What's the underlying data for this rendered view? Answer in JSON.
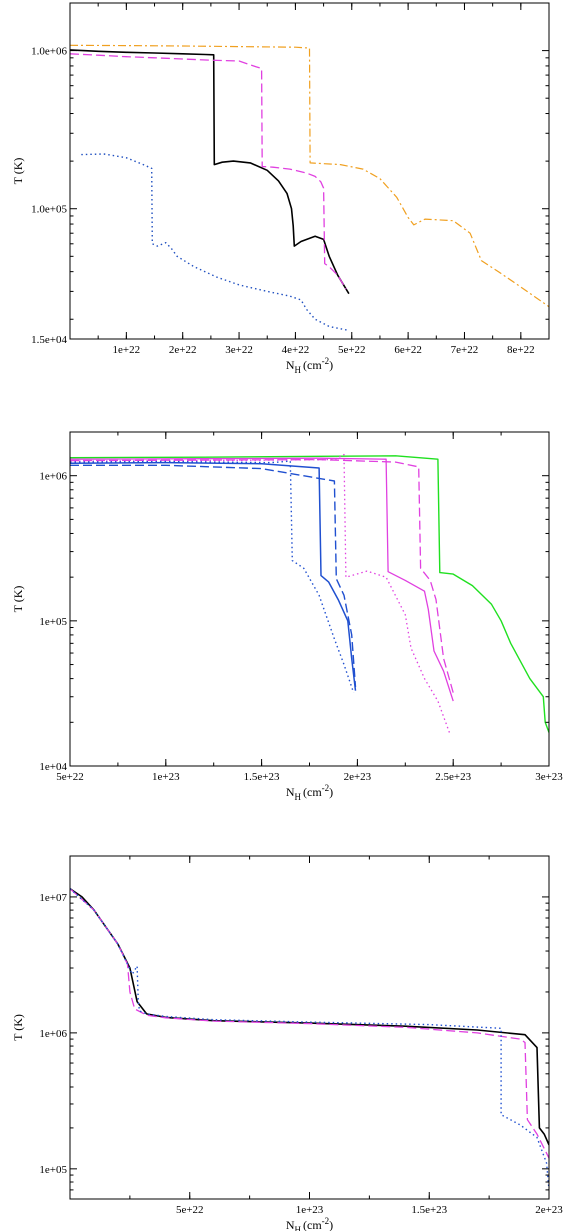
{
  "chart_data": [
    {
      "type": "line",
      "ylog": true,
      "xlabel_main": "N",
      "xlabel_sub": "H",
      "xlabel_unit": "(cm",
      "xlabel_exp": "-2",
      "xlabel_close": ")",
      "ylabel": "T (K)",
      "xlim": [
        0,
        8.5e+22
      ],
      "ylim": [
        15000,
        2000000
      ],
      "xticks": [
        {
          "v": 1e+22,
          "label": "1e+22"
        },
        {
          "v": 2e+22,
          "label": "2e+22"
        },
        {
          "v": 3e+22,
          "label": "3e+22"
        },
        {
          "v": 4e+22,
          "label": "4e+22"
        },
        {
          "v": 5e+22,
          "label": "5e+22"
        },
        {
          "v": 6e+22,
          "label": "6e+22"
        },
        {
          "v": 7e+22,
          "label": "7e+22"
        },
        {
          "v": 8e+22,
          "label": "8e+22"
        }
      ],
      "yticks": [
        {
          "v": 1000000,
          "label": "1.0e+06"
        },
        {
          "v": 100000,
          "label": "1.0e+05"
        },
        {
          "v": 15000,
          "label": "1.5e+04"
        }
      ],
      "series": [
        {
          "color": "#000000",
          "dash": "",
          "width": 1.6,
          "x": [
            0,
            5e+21,
            1e+22,
            1.5e+22,
            2e+22,
            2.4e+22,
            2.55e+22,
            2.56e+22,
            2.7e+22,
            2.9e+22,
            3.2e+22,
            3.5e+22,
            3.7e+22,
            3.85e+22,
            3.93e+22,
            3.96e+22,
            3.98e+22,
            4.1e+22,
            4.35e+22,
            4.5e+22,
            4.6e+22,
            4.75e+22,
            4.95e+22
          ],
          "y": [
            1010000,
            990000,
            975000,
            965000,
            955000,
            945000,
            940000,
            190000,
            197000,
            200000,
            195000,
            175000,
            150000,
            125000,
            100000,
            78000,
            58000,
            62000,
            67000,
            64000,
            50000,
            38000,
            29000
          ]
        },
        {
          "color": "#e040e0",
          "dash": "9,4",
          "width": 1.3,
          "x": [
            0,
            5e+21,
            1e+22,
            1.5e+22,
            2e+22,
            2.5e+22,
            3e+22,
            3.3e+22,
            3.4e+22,
            3.41e+22,
            3.6e+22,
            3.9e+22,
            4.2e+22,
            4.35e+22,
            4.45e+22,
            4.5e+22,
            4.52e+22,
            4.6e+22,
            4.75e+22,
            4.9e+22
          ],
          "y": [
            955000,
            935000,
            915000,
            900000,
            885000,
            870000,
            860000,
            790000,
            770000,
            185000,
            183000,
            178000,
            168000,
            160000,
            148000,
            135000,
            45000,
            43000,
            38000,
            31000
          ]
        },
        {
          "color": "#f0a020",
          "dash": "8,3,2,3",
          "width": 1.2,
          "x": [
            0,
            1e+22,
            2e+22,
            3e+22,
            4e+22,
            4.2e+22,
            4.25e+22,
            4.26e+22,
            4.8e+22,
            5.2e+22,
            5.5e+22,
            5.8e+22,
            6e+22,
            6.1e+22,
            6.3e+22,
            6.8e+22,
            7.1e+22,
            7.3e+22,
            7.6e+22,
            8e+22,
            8.5e+22
          ],
          "y": [
            1080000,
            1075000,
            1070000,
            1060000,
            1050000,
            1040000,
            1035000,
            195000,
            190000,
            178000,
            155000,
            118000,
            88000,
            79000,
            86000,
            84000,
            70000,
            47000,
            40000,
            32000,
            24000
          ]
        },
        {
          "color": "#2050c0",
          "dash": "1.5,3",
          "width": 1.4,
          "x": [
            2e+21,
            6e+21,
            1e+22,
            1.3e+22,
            1.45e+22,
            1.46e+22,
            1.55e+22,
            1.7e+22,
            1.8e+22,
            1.9e+22,
            2.2e+22,
            2.6e+22,
            3e+22,
            3.5e+22,
            3.9e+22,
            4.1e+22,
            4.2e+22,
            4.35e+22,
            4.6e+22,
            4.95e+22
          ],
          "y": [
            220000,
            222000,
            210000,
            190000,
            180000,
            60000,
            58000,
            61000,
            56000,
            50000,
            43000,
            37000,
            33000,
            30000,
            28000,
            26500,
            23000,
            20000,
            18000,
            17000
          ]
        }
      ]
    },
    {
      "type": "line",
      "ylog": true,
      "xlabel_main": "N",
      "xlabel_sub": "H",
      "xlabel_unit": "(cm",
      "xlabel_exp": "-2",
      "xlabel_close": ")",
      "ylabel": "T (K)",
      "xlim": [
        5e+22,
        3e+23
      ],
      "ylim": [
        10000,
        2000000
      ],
      "xticks": [
        {
          "v": 5e+22,
          "label": "5e+22"
        },
        {
          "v": 1e+23,
          "label": "1e+23"
        },
        {
          "v": 1.5e+23,
          "label": "1.5e+23"
        },
        {
          "v": 2e+23,
          "label": "2e+23"
        },
        {
          "v": 2.5e+23,
          "label": "2.5e+23"
        },
        {
          "v": 3e+23,
          "label": "3e+23"
        }
      ],
      "yticks": [
        {
          "v": 1000000,
          "label": "1e+06"
        },
        {
          "v": 100000,
          "label": "1e+05"
        },
        {
          "v": 10000,
          "label": "1e+04"
        }
      ],
      "series": [
        {
          "color": "#20e020",
          "dash": "",
          "width": 1.4,
          "x": [
            5e+22,
            1.2e+23,
            1.8e+23,
            2.2e+23,
            2.42e+23,
            2.43e+23,
            2.5e+23,
            2.6e+23,
            2.7e+23,
            2.75e+23,
            2.8e+23,
            2.9e+23,
            2.97e+23,
            2.98e+23,
            3e+23
          ],
          "y": [
            1330000,
            1340000,
            1360000,
            1370000,
            1300000,
            215000,
            210000,
            175000,
            130000,
            100000,
            70000,
            40000,
            30000,
            20000,
            17000
          ]
        },
        {
          "color": "#e040e0",
          "dash": "",
          "width": 1.3,
          "x": [
            5e+22,
            1.2e+23,
            1.8e+23,
            2.15e+23,
            2.16e+23,
            2.25e+23,
            2.35e+23,
            2.37e+23,
            2.4e+23,
            2.45e+23,
            2.5e+23
          ],
          "y": [
            1300000,
            1310000,
            1320000,
            1300000,
            218000,
            190000,
            160000,
            120000,
            62000,
            45000,
            28000
          ]
        },
        {
          "color": "#e040e0",
          "dash": "9,4",
          "width": 1.3,
          "x": [
            5e+22,
            1.2e+23,
            1.8e+23,
            2.2e+23,
            2.32e+23,
            2.33e+23,
            2.38e+23,
            2.41e+23,
            2.45e+23,
            2.5e+23
          ],
          "y": [
            1270000,
            1280000,
            1290000,
            1240000,
            1150000,
            230000,
            190000,
            140000,
            55000,
            32000
          ]
        },
        {
          "color": "#e040e0",
          "dash": "1.5,3",
          "width": 1.3,
          "x": [
            5e+22,
            1.2e+23,
            1.88e+23,
            1.93e+23,
            1.94e+23,
            2.05e+23,
            2.15e+23,
            2.25e+23,
            2.28e+23,
            2.35e+23,
            2.42e+23,
            2.48e+23
          ],
          "y": [
            1260000,
            1270000,
            1290000,
            1400000,
            200000,
            220000,
            200000,
            110000,
            65000,
            40000,
            28000,
            17000
          ]
        },
        {
          "color": "#2050d0",
          "dash": "",
          "width": 1.5,
          "x": [
            5e+22,
            1e+23,
            1.5e+23,
            1.8e+23,
            1.81e+23,
            1.85e+23,
            1.9e+23,
            1.95e+23,
            1.97e+23,
            1.99e+23
          ],
          "y": [
            1220000,
            1230000,
            1210000,
            1130000,
            205000,
            185000,
            140000,
            100000,
            55000,
            33000
          ]
        },
        {
          "color": "#2050d0",
          "dash": "9,4",
          "width": 1.4,
          "x": [
            5e+22,
            1e+23,
            1.5e+23,
            1.88e+23,
            1.89e+23,
            1.93e+23,
            1.97e+23,
            1.99e+23
          ],
          "y": [
            1180000,
            1180000,
            1120000,
            920000,
            195000,
            150000,
            80000,
            35000
          ]
        },
        {
          "color": "#2050d0",
          "dash": "1.5,3",
          "width": 1.4,
          "x": [
            5e+22,
            1e+23,
            1.55e+23,
            1.65e+23,
            1.66e+23,
            1.72e+23,
            1.8e+23,
            1.88e+23,
            1.93e+23,
            1.98e+23
          ],
          "y": [
            1240000,
            1250000,
            1230000,
            1260000,
            260000,
            230000,
            150000,
            75000,
            50000,
            32000
          ]
        }
      ]
    },
    {
      "type": "line",
      "ylog": true,
      "xlabel_main": "N",
      "xlabel_sub": "H",
      "xlabel_unit": "(cm",
      "xlabel_exp": "-2",
      "xlabel_close": ")",
      "ylabel": "T (K)",
      "xlim": [
        0,
        2e+23
      ],
      "ylim": [
        60000,
        20000000
      ],
      "xticks": [
        {
          "v": 5e+22,
          "label": "5e+22"
        },
        {
          "v": 1e+23,
          "label": "1e+23"
        },
        {
          "v": 1.5e+23,
          "label": "1.5e+23"
        },
        {
          "v": 2e+23,
          "label": "2e+23"
        }
      ],
      "yticks": [
        {
          "v": 10000000,
          "label": "1e+07"
        },
        {
          "v": 1000000,
          "label": "1e+06"
        },
        {
          "v": 100000,
          "label": "1e+05"
        }
      ],
      "series": [
        {
          "color": "#000000",
          "dash": "",
          "width": 1.6,
          "x": [
            0,
            5e+21,
            1e+22,
            1.5e+22,
            2e+22,
            2.5e+22,
            2.8e+22,
            3.2e+22,
            4e+22,
            6e+22,
            1e+23,
            1.4e+23,
            1.7e+23,
            1.9e+23,
            1.95e+23,
            1.96e+23,
            1.98e+23,
            2e+23
          ],
          "y": [
            11500000,
            10000000,
            8000000,
            6000000,
            4500000,
            3000000,
            1700000,
            1380000,
            1300000,
            1230000,
            1180000,
            1120000,
            1050000,
            970000,
            780000,
            200000,
            180000,
            150000
          ]
        },
        {
          "color": "#e040e0",
          "dash": "9,4",
          "width": 1.3,
          "x": [
            0,
            1e+22,
            2e+22,
            2.4e+22,
            2.5e+22,
            2.7e+22,
            3.2e+22,
            4e+22,
            6e+22,
            1e+23,
            1.4e+23,
            1.7e+23,
            1.88e+23,
            1.9e+23,
            1.91e+23,
            1.95e+23,
            2e+23
          ],
          "y": [
            11500000,
            8000000,
            4500000,
            3200000,
            2000000,
            1500000,
            1350000,
            1290000,
            1220000,
            1170000,
            1100000,
            1000000,
            900000,
            850000,
            230000,
            180000,
            120000
          ]
        },
        {
          "color": "#2050d0",
          "dash": "1.5,3",
          "width": 1.4,
          "x": [
            0,
            1e+22,
            2e+22,
            2.6e+22,
            2.8e+22,
            2.85e+22,
            2.9e+22,
            3.2e+22,
            4e+22,
            6e+22,
            1e+23,
            1.5e+23,
            1.8e+23,
            1.8e+23,
            1.88e+23,
            1.95e+23,
            1.99e+23,
            2e+23
          ],
          "y": [
            11500000,
            8000000,
            4500000,
            2700000,
            3100000,
            1700000,
            1450000,
            1380000,
            1320000,
            1250000,
            1200000,
            1150000,
            1080000,
            250000,
            210000,
            170000,
            110000,
            70000
          ]
        }
      ]
    }
  ]
}
